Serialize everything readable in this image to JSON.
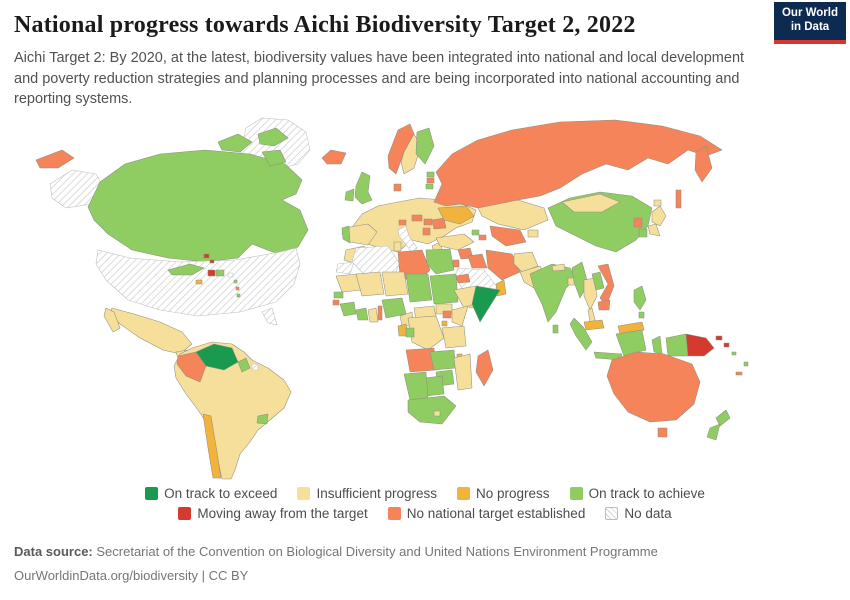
{
  "header": {
    "title": "National progress towards Aichi Biodiversity Target 2, 2022",
    "subtitle": "Aichi Target 2: By 2020, at the latest, biodiversity values have been integrated into national and local development and poverty reduction strategies and planning processes and are being incorporated into national accounting and reporting systems.",
    "logo": {
      "line1": "Our World",
      "line2": "in Data"
    }
  },
  "colors": {
    "exceed": "#199a4f",
    "insufficient": "#f6df9a",
    "no_progress": "#f1b33c",
    "achieve": "#8fcc62",
    "moving_away": "#d43a2e",
    "no_national_target": "#f6845b",
    "no_data": "#ffffff",
    "logo_navy": "#0d2b50",
    "logo_red": "#d8352e"
  },
  "legend": {
    "rows": [
      [
        {
          "key": "exceed",
          "label": "On track to exceed"
        },
        {
          "key": "insufficient",
          "label": "Insufficient progress"
        },
        {
          "key": "no_progress",
          "label": "No progress"
        },
        {
          "key": "achieve",
          "label": "On track to achieve"
        }
      ],
      [
        {
          "key": "moving_away",
          "label": "Moving away from the target"
        },
        {
          "key": "no_national_target",
          "label": "No national target established"
        },
        {
          "key": "no_data",
          "label": "No data"
        }
      ]
    ]
  },
  "footer": {
    "datasource_label": "Data source:",
    "datasource": "Secretariat of the Convention on Biological Diversity and United Nations Environment Programme",
    "note": "OurWorldinData.org/biodiversity | CC BY"
  },
  "chart_data": {
    "type": "choropleth-map",
    "title": "National progress towards Aichi Biodiversity Target 2",
    "year": "2022",
    "legend_position": "bottom",
    "categories": [
      "On track to exceed",
      "Insufficient progress",
      "No progress",
      "On track to achieve",
      "Moving away from the target",
      "No national target established",
      "No data"
    ],
    "countries": {
      "Venezuela": "On track to exceed",
      "Somalia": "On track to exceed",
      "Canada": "On track to achieve",
      "Cuba": "On track to achieve",
      "Dominican Republic": "On track to achieve",
      "Panama": "On track to achieve",
      "Costa Rica": "On track to achieve",
      "Uruguay": "On track to achieve",
      "United Kingdom": "On track to achieve",
      "Ireland": "On track to achieve",
      "Portugal": "On track to achieve",
      "Finland": "On track to achieve",
      "Estonia": "On track to achieve",
      "Lithuania": "On track to achieve",
      "Georgia": "On track to achieve",
      "Egypt": "On track to achieve",
      "Senegal": "On track to achieve",
      "Guinea": "On track to achieve",
      "Sierra Leone": "On track to achieve",
      "Liberia": "On track to achieve",
      "Cote d'Ivoire": "On track to achieve",
      "Nigeria": "On track to achieve",
      "Chad": "On track to achieve",
      "Sudan": "On track to achieve",
      "Congo": "On track to achieve",
      "Zambia": "On track to achieve",
      "Zimbabwe": "On track to achieve",
      "Namibia": "On track to achieve",
      "Botswana": "On track to achieve",
      "South Africa": "On track to achieve",
      "China": "On track to achieve",
      "India": "On track to achieve",
      "Sri Lanka": "On track to achieve",
      "South Korea": "On track to achieve",
      "Myanmar": "On track to achieve",
      "Laos": "On track to achieve",
      "Indonesia": "On track to achieve",
      "Philippines": "On track to achieve",
      "New Zealand": "On track to achieve",
      "Mexico": "Insufficient progress",
      "Guatemala": "Insufficient progress",
      "Honduras": "Insufficient progress",
      "Brazil": "Insufficient progress",
      "Peru": "Insufficient progress",
      "Bolivia": "Insufficient progress",
      "Ecuador": "Insufficient progress",
      "Argentina": "Insufficient progress",
      "Paraguay": "Insufficient progress",
      "Guyana": "Insufficient progress",
      "Suriname": "Insufficient progress",
      "Sweden": "Insufficient progress",
      "France": "Insufficient progress",
      "Spain": "Insufficient progress",
      "Germany": "Insufficient progress",
      "Poland": "Insufficient progress",
      "Belarus": "Insufficient progress",
      "Bulgaria": "Insufficient progress",
      "Greece": "Insufficient progress",
      "Turkey": "Insufficient progress",
      "Kazakhstan": "Insufficient progress",
      "Afghanistan": "Insufficient progress",
      "Pakistan": "Insufficient progress",
      "Nepal": "Insufficient progress",
      "Bangladesh": "Insufficient progress",
      "Mongolia": "Insufficient progress",
      "Japan": "Insufficient progress",
      "Thailand": "Insufficient progress",
      "Morocco": "Insufficient progress",
      "Tunisia": "Insufficient progress",
      "Mauritania": "Insufficient progress",
      "Mali": "Insufficient progress",
      "Burkina Faso": "Insufficient progress",
      "Ghana": "Insufficient progress",
      "Niger": "Insufficient progress",
      "Cameroon": "Insufficient progress",
      "Central African Republic": "Insufficient progress",
      "South Sudan": "Insufficient progress",
      "Ethiopia": "Insufficient progress",
      "Kenya": "Insufficient progress",
      "Tanzania": "Insufficient progress",
      "Democratic Republic of Congo": "Insufficient progress",
      "Mozambique": "Insufficient progress",
      "Yemen": "Insufficient progress",
      "Chile": "No progress",
      "Ukraine": "No progress",
      "Jamaica": "No progress",
      "Gabon": "No progress",
      "Malaysia": "No progress",
      "Oman": "No progress",
      "Malawi": "No progress",
      "Papua New Guinea": "Moving away from the target",
      "Haiti": "Moving away from the target",
      "Bahamas": "Moving away from the target",
      "Russia": "No national target established",
      "Australia": "No national target established",
      "Colombia": "No national target established",
      "Nicaragua": "No national target established",
      "Iceland": "No national target established",
      "Norway": "No national target established",
      "Denmark": "No national target established",
      "Switzerland": "No national target established",
      "Austria": "No national target established",
      "Czechia": "No national target established",
      "Hungary": "No national target established",
      "Romania": "No national target established",
      "Serbia": "No national target established",
      "Latvia": "No national target established",
      "Libya": "No national target established",
      "Eritrea": "No national target established",
      "Uganda": "No national target established",
      "Angola": "No national target established",
      "Madagascar": "No national target established",
      "Guinea-Bissau": "No national target established",
      "Vietnam": "No national target established",
      "Cambodia": "No national target established",
      "North Korea": "No national target established",
      "Iraq": "No national target established",
      "Syria": "No national target established",
      "Jordan": "No national target established",
      "Iran": "No national target established",
      "Turkmenistan": "No national target established",
      "Uzbekistan": "No national target established",
      "Azerbaijan": "No national target established",
      "United States": "No data",
      "Greenland": "No data",
      "Italy": "No data",
      "Algeria": "No data",
      "Western Sahara": "No data",
      "Saudi Arabia": "No data",
      "French Guiana": "No data",
      "Puerto Rico": "No data"
    }
  }
}
